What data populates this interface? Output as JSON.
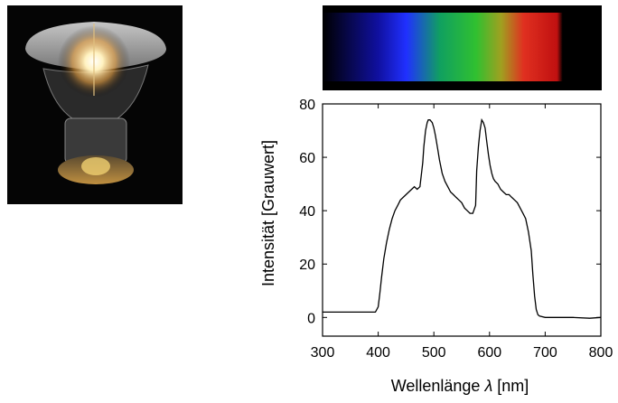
{
  "photo": {
    "subject": "lamp-photo"
  },
  "spectrum_strip": {
    "colors": [
      "#1010a0",
      "#2030ff",
      "#10a060",
      "#30c030",
      "#a0a020",
      "#e03020",
      "#c01010"
    ]
  },
  "chart_data": {
    "type": "line",
    "xlabel_prefix": "Wellenlänge ",
    "xlabel_symbol": "λ",
    "xlabel_unit": " [nm]",
    "ylabel": "Intensität [Grauwert]",
    "xlim": [
      300,
      800
    ],
    "ylim": [
      -7,
      80
    ],
    "xticks": [
      300,
      400,
      500,
      600,
      700,
      800
    ],
    "yticks": [
      0,
      20,
      40,
      60,
      80
    ],
    "grid": false,
    "series": [
      {
        "x": [
          300,
          350,
          395,
          400,
          403,
          406,
          410,
          415,
          420,
          425,
          430,
          435,
          440,
          450,
          460,
          465,
          470,
          475,
          480,
          482,
          485,
          488,
          490,
          493,
          497,
          500,
          503,
          507,
          510,
          515,
          520,
          525,
          530,
          535,
          540,
          545,
          550,
          555,
          560,
          565,
          570,
          575,
          577,
          580,
          583,
          586,
          589,
          592,
          595,
          598,
          601,
          604,
          607,
          610,
          615,
          620,
          625,
          630,
          635,
          640,
          645,
          650,
          655,
          660,
          665,
          670,
          675,
          678,
          681,
          684,
          687,
          690,
          700,
          720,
          750,
          780,
          800
        ],
        "y": [
          2,
          2,
          2,
          4,
          9,
          15,
          22,
          28,
          33,
          37,
          40,
          42,
          44,
          46,
          48,
          49,
          48,
          49,
          58,
          64,
          70,
          73,
          74,
          74,
          73,
          71,
          68,
          63,
          59,
          54,
          51,
          49,
          47,
          46,
          45,
          44,
          43,
          41,
          40,
          39,
          39,
          42,
          55,
          64,
          70,
          74,
          73,
          71,
          66,
          61,
          57,
          54,
          52,
          51,
          50,
          48,
          47,
          46,
          46,
          45,
          44,
          43,
          41,
          39,
          37,
          32,
          25,
          16,
          8,
          3,
          1,
          0.5,
          0,
          0,
          0,
          -0.3,
          0
        ]
      }
    ]
  }
}
